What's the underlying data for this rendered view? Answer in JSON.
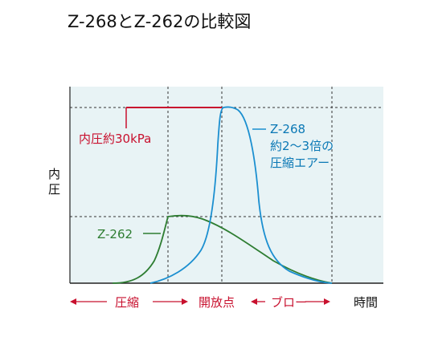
{
  "title": "Z-268とZ-262の比較図",
  "y_label": [
    "内",
    "圧"
  ],
  "annotations": {
    "pressure": "内圧約30kPa",
    "z268_name": "Z-268",
    "z268_line2": "約2〜3倍の",
    "z268_line3": "圧縮エアー",
    "z262_name": "Z-262"
  },
  "phases": {
    "compression": "圧縮",
    "valve_open": "開放点",
    "blow": "ブロー"
  },
  "x_label": "時間",
  "colors": {
    "plot_bg": "#e8f3f5",
    "z268": "#1b8fd0",
    "z262": "#2e7d32",
    "pressure": "#c8102e",
    "phase": "#c8102e"
  }
}
